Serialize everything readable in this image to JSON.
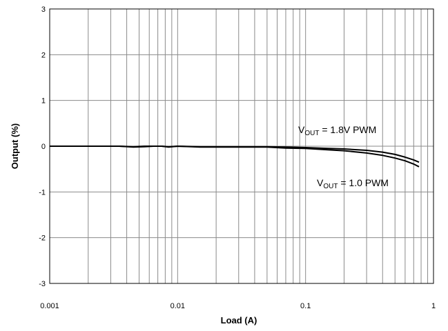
{
  "chart_data": {
    "type": "line",
    "title": "",
    "xlabel": "Load (A)",
    "ylabel": "Output (%)",
    "xscale": "log",
    "xlim": [
      0.001,
      1
    ],
    "ylim": [
      -3,
      3
    ],
    "grid": true,
    "x_ticks": [
      {
        "value": 0.001,
        "label": "0.001"
      },
      {
        "value": 0.01,
        "label": "0.01"
      },
      {
        "value": 0.1,
        "label": "0.1"
      },
      {
        "value": 1,
        "label": "1"
      }
    ],
    "y_ticks": [
      {
        "value": 3,
        "label": "3"
      },
      {
        "value": 2,
        "label": "2"
      },
      {
        "value": 1,
        "label": "1"
      },
      {
        "value": 0,
        "label": "0"
      },
      {
        "value": -1,
        "label": "-1"
      },
      {
        "value": -2,
        "label": "-2"
      },
      {
        "value": -3,
        "label": "-3"
      }
    ],
    "series": [
      {
        "name": "VOUT = 1.8V PWM",
        "x": [
          0.001,
          0.002,
          0.0035,
          0.0045,
          0.0055,
          0.0065,
          0.0075,
          0.0085,
          0.01,
          0.015,
          0.02,
          0.03,
          0.05,
          0.07,
          0.1,
          0.15,
          0.2,
          0.3,
          0.4,
          0.5,
          0.6,
          0.7,
          0.77
        ],
        "y": [
          0.0,
          0.0,
          0.0,
          -0.01,
          0.0,
          0.0,
          0.0,
          -0.01,
          0.0,
          -0.01,
          -0.01,
          -0.01,
          -0.01,
          -0.02,
          -0.03,
          -0.05,
          -0.06,
          -0.09,
          -0.13,
          -0.18,
          -0.24,
          -0.3,
          -0.35
        ]
      },
      {
        "name": "VOUT = 1.0 PWM",
        "x": [
          0.001,
          0.002,
          0.0035,
          0.0045,
          0.0055,
          0.0065,
          0.0075,
          0.0085,
          0.01,
          0.015,
          0.02,
          0.03,
          0.05,
          0.07,
          0.1,
          0.15,
          0.2,
          0.3,
          0.4,
          0.5,
          0.6,
          0.7,
          0.77
        ],
        "y": [
          0.0,
          0.0,
          0.0,
          -0.02,
          -0.01,
          0.0,
          0.0,
          -0.02,
          0.0,
          -0.02,
          -0.02,
          -0.02,
          -0.02,
          -0.04,
          -0.05,
          -0.08,
          -0.1,
          -0.15,
          -0.2,
          -0.26,
          -0.32,
          -0.39,
          -0.45
        ]
      }
    ],
    "annotations": [
      {
        "series": 0,
        "main": "V",
        "sub": "OUT",
        "rest": " = 1.8V PWM"
      },
      {
        "series": 1,
        "main": "V",
        "sub": "OUT",
        "rest": " = 1.0 PWM"
      }
    ]
  }
}
